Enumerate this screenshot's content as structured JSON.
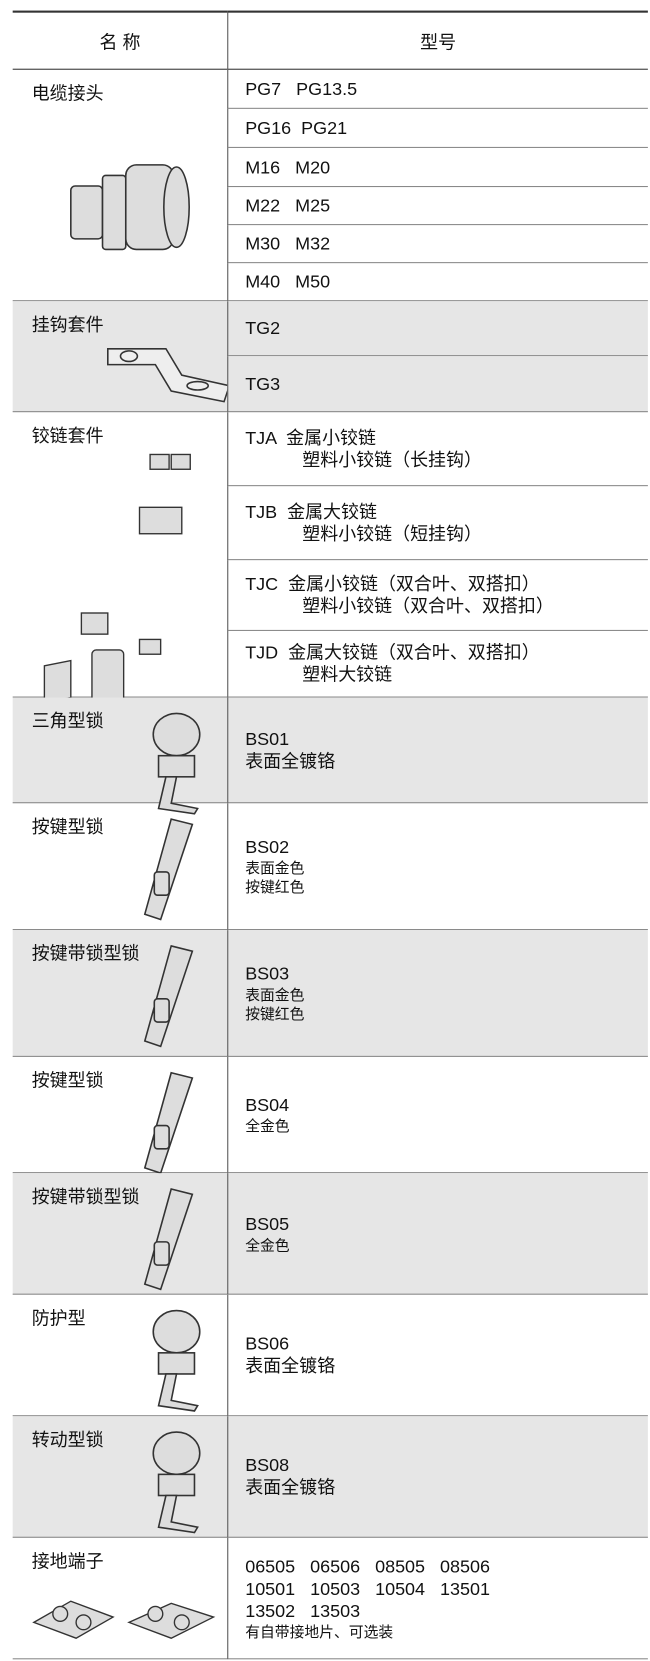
{
  "table": {
    "header": [
      "名 称",
      "型号"
    ],
    "rows": [
      {
        "name": "电缆接头",
        "models": [
          [
            "PG7   PG13.5"
          ],
          [
            "PG16  PG21"
          ],
          [
            "M16   M20"
          ],
          [
            "M22   M25"
          ],
          [
            "M30   M32"
          ],
          [
            "M40   M50"
          ]
        ]
      },
      {
        "name": "挂钩套件",
        "models": [
          [
            "TG2"
          ],
          [
            "TG3"
          ]
        ]
      },
      {
        "name": "铰链套件",
        "models": [
          [
            "TJA  金属小铰链",
            "塑料小铰链（长挂钩）"
          ],
          [
            "TJB  金属大铰链",
            "塑料小铰链（短挂钩）"
          ],
          [
            "TJC  金属小铰链（双合叶、双搭扣）",
            "塑料小铰链（双合叶、双搭扣）"
          ],
          [
            "TJD  金属大铰链（双合叶、双搭扣）",
            "塑料大铰链"
          ]
        ]
      },
      {
        "name": "三角型锁",
        "models": [
          [
            "BS01",
            "表面全镀铬"
          ]
        ]
      },
      {
        "name": "按键型锁",
        "models": [
          [
            "BS02",
            "表面金色",
            "按键红色"
          ]
        ]
      },
      {
        "name": "按键带锁型锁",
        "models": [
          [
            "BS03",
            "表面金色",
            "按键红色"
          ]
        ]
      },
      {
        "name": "按键型锁",
        "models": [
          [
            "BS04",
            "全金色"
          ]
        ]
      },
      {
        "name": "按键带锁型锁",
        "models": [
          [
            "BS05",
            "全金色"
          ]
        ]
      },
      {
        "name": "防护型",
        "models": [
          [
            "BS06",
            "表面全镀铬"
          ]
        ]
      },
      {
        "name": "转动型锁",
        "models": [
          [
            "BS08",
            "表面全镀铬"
          ]
        ]
      },
      {
        "name": "接地端子",
        "models": [
          [
            "06505   06506   08505   08506",
            "10501   10503   10504   13501",
            "13502   13503",
            "有自带接地片、可选装"
          ]
        ]
      }
    ]
  }
}
